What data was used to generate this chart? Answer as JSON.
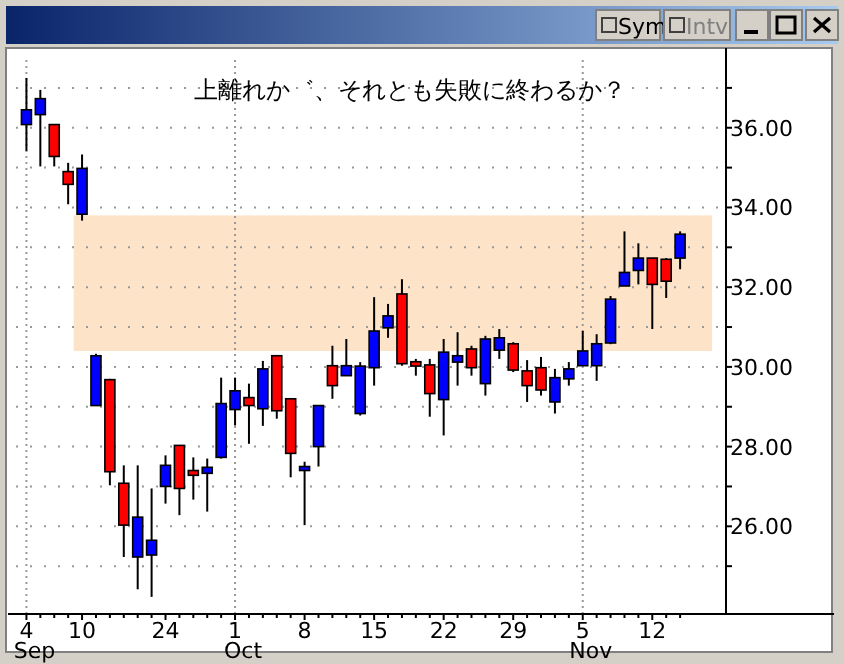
{
  "chart_data": {
    "type": "candlestick",
    "categories": [
      "4 Sep",
      null,
      null,
      null,
      "10",
      null,
      null,
      null,
      null,
      null,
      "24",
      null,
      null,
      null,
      null,
      "1 Oct",
      null,
      null,
      null,
      null,
      "8",
      null,
      null,
      null,
      null,
      "15",
      null,
      null,
      null,
      null,
      "22",
      null,
      null,
      null,
      null,
      "29",
      null,
      null,
      null,
      null,
      "5 Nov",
      null,
      null,
      null,
      null,
      "12",
      null,
      null
    ],
    "ohlc": [
      [
        36.08,
        37.25,
        35.42,
        36.45
      ],
      [
        36.33,
        36.95,
        35.03,
        36.73
      ],
      [
        36.08,
        36.08,
        35.03,
        35.28
      ],
      [
        34.9,
        35.12,
        34.08,
        34.58
      ],
      [
        33.83,
        35.33,
        33.67,
        34.98
      ],
      [
        29.03,
        30.33,
        29.03,
        30.28
      ],
      [
        29.68,
        29.7,
        27.03,
        27.37
      ],
      [
        27.08,
        27.53,
        25.23,
        26.03
      ],
      [
        25.23,
        27.53,
        24.42,
        26.23
      ],
      [
        25.28,
        26.95,
        24.23,
        25.65
      ],
      [
        27.0,
        27.78,
        26.57,
        27.53
      ],
      [
        28.03,
        28.03,
        26.28,
        26.95
      ],
      [
        27.4,
        27.73,
        26.67,
        27.28
      ],
      [
        27.33,
        27.7,
        26.37,
        27.48
      ],
      [
        27.73,
        29.73,
        27.7,
        29.08
      ],
      [
        28.93,
        29.73,
        28.53,
        29.4
      ],
      [
        29.23,
        29.58,
        28.07,
        29.03
      ],
      [
        28.95,
        30.15,
        28.52,
        29.95
      ],
      [
        30.28,
        30.28,
        28.7,
        28.9
      ],
      [
        29.2,
        29.2,
        27.23,
        27.83
      ],
      [
        27.4,
        27.62,
        26.03,
        27.5
      ],
      [
        28.0,
        29.03,
        27.5,
        29.03
      ],
      [
        30.03,
        30.53,
        29.2,
        29.53
      ],
      [
        29.78,
        30.7,
        29.78,
        30.03
      ],
      [
        28.83,
        30.12,
        28.78,
        30.02
      ],
      [
        29.98,
        31.75,
        29.53,
        30.9
      ],
      [
        30.98,
        31.58,
        30.73,
        31.28
      ],
      [
        31.83,
        32.2,
        30.03,
        30.08
      ],
      [
        30.13,
        30.2,
        29.78,
        30.02
      ],
      [
        30.05,
        30.2,
        28.75,
        29.33
      ],
      [
        29.18,
        30.7,
        28.28,
        30.37
      ],
      [
        30.12,
        30.87,
        29.53,
        30.28
      ],
      [
        30.45,
        30.53,
        29.78,
        29.98
      ],
      [
        29.58,
        30.78,
        29.28,
        30.7
      ],
      [
        30.42,
        30.95,
        30.2,
        30.73
      ],
      [
        30.58,
        30.62,
        29.87,
        29.92
      ],
      [
        29.9,
        30.17,
        29.12,
        29.53
      ],
      [
        29.98,
        30.25,
        29.28,
        29.42
      ],
      [
        29.12,
        29.95,
        28.83,
        29.73
      ],
      [
        29.7,
        30.12,
        29.53,
        29.95
      ],
      [
        30.03,
        30.9,
        30.03,
        30.4
      ],
      [
        30.03,
        30.82,
        29.65,
        30.58
      ],
      [
        30.6,
        31.78,
        30.57,
        31.7
      ],
      [
        32.03,
        33.4,
        32.03,
        32.37
      ],
      [
        32.42,
        33.1,
        32.07,
        32.73
      ],
      [
        32.73,
        32.73,
        30.95,
        32.07
      ],
      [
        32.7,
        32.73,
        31.73,
        32.15
      ],
      [
        32.73,
        33.4,
        32.45,
        33.33
      ]
    ],
    "colors": [
      "#0000ff",
      "#0000ff",
      "#ff0000",
      "#ff0000",
      "#0000ff",
      "#0000ff",
      "#ff0000",
      "#ff0000",
      "#0000ff",
      "#0000ff",
      "#0000ff",
      "#ff0000",
      "#ff0000",
      "#0000ff",
      "#0000ff",
      "#0000ff",
      "#ff0000",
      "#0000ff",
      "#ff0000",
      "#ff0000",
      "#0000ff",
      "#0000ff",
      "#ff0000",
      "#0000ff",
      "#0000ff",
      "#0000ff",
      "#0000ff",
      "#ff0000",
      "#ff0000",
      "#ff0000",
      "#0000ff",
      "#0000ff",
      "#ff0000",
      "#0000ff",
      "#0000ff",
      "#ff0000",
      "#ff0000",
      "#ff0000",
      "#0000ff",
      "#0000ff",
      "#0000ff",
      "#0000ff",
      "#0000ff",
      "#0000ff",
      "#0000ff",
      "#ff0000",
      "#ff0000",
      "#0000ff"
    ],
    "ylim": [
      23.8,
      37.7
    ],
    "yticks": [
      {
        "value": 25,
        "label": null
      },
      {
        "value": 26,
        "label": "26.00"
      },
      {
        "value": 27,
        "label": null
      },
      {
        "value": 28,
        "label": "28.00"
      },
      {
        "value": 29,
        "label": null
      },
      {
        "value": 30,
        "label": "30.00"
      },
      {
        "value": 31,
        "label": null
      },
      {
        "value": 32,
        "label": "32.00"
      },
      {
        "value": 33,
        "label": null
      },
      {
        "value": 34,
        "label": "34.00"
      },
      {
        "value": 35,
        "label": null
      },
      {
        "value": 36,
        "label": "36.00"
      },
      {
        "value": 37,
        "label": null
      }
    ],
    "grid": true,
    "bands": [
      {
        "axis": "y",
        "from": 30.4,
        "to": 33.8,
        "color": "#fde3c7"
      }
    ],
    "annotations": [
      "上離れか゛、それとも失敗に終わるか？",
      "Sym",
      "Intv"
    ]
  }
}
